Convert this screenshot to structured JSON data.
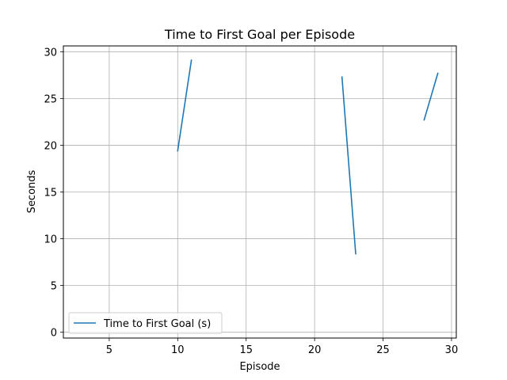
{
  "chart_data": {
    "type": "line",
    "title": "Time to First Goal per Episode",
    "xlabel": "Episode",
    "ylabel": "Seconds",
    "xlim": [
      1.65,
      30.35
    ],
    "ylim": [
      -0.62,
      30.62
    ],
    "xticks": [
      5,
      10,
      15,
      20,
      25,
      30
    ],
    "yticks": [
      0,
      5,
      10,
      15,
      20,
      25,
      30
    ],
    "grid": true,
    "legend_location": "lower-left",
    "series": [
      {
        "name": "Time to First Goal (s)",
        "color": "#1f77b4",
        "segments": [
          {
            "x": [
              10,
              11
            ],
            "y": [
              19.4,
              29.1
            ]
          },
          {
            "x": [
              22,
              23
            ],
            "y": [
              27.3,
              8.4
            ]
          },
          {
            "x": [
              28,
              29
            ],
            "y": [
              22.7,
              27.7
            ]
          }
        ]
      }
    ]
  }
}
